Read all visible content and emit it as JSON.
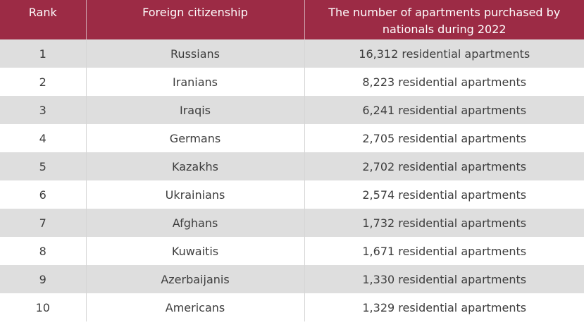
{
  "table": {
    "header": {
      "rank": "Rank",
      "citizenship": "Foreign citizenship",
      "count": "The number of apartments purchased by nationals during 2022"
    },
    "rows": [
      {
        "rank": "1",
        "citizenship": "Russians",
        "count": "16,312 residential apartments"
      },
      {
        "rank": "2",
        "citizenship": "Iranians",
        "count": "8,223 residential apartments"
      },
      {
        "rank": "3",
        "citizenship": "Iraqis",
        "count": "6,241 residential apartments"
      },
      {
        "rank": "4",
        "citizenship": "Germans",
        "count": "2,705 residential apartments"
      },
      {
        "rank": "5",
        "citizenship": "Kazakhs",
        "count": "2,702 residential apartments"
      },
      {
        "rank": "6",
        "citizenship": "Ukrainians",
        "count": "2,574 residential apartments"
      },
      {
        "rank": "7",
        "citizenship": "Afghans",
        "count": "1,732 residential apartments"
      },
      {
        "rank": "8",
        "citizenship": "Kuwaitis",
        "count": "1,671 residential apartments"
      },
      {
        "rank": "9",
        "citizenship": "Azerbaijanis",
        "count": "1,330 residential apartments"
      },
      {
        "rank": "10",
        "citizenship": "Americans",
        "count": "1,329 residential apartments"
      }
    ]
  },
  "colors": {
    "header_bg": "#9c2b45",
    "header_text": "#ffffff",
    "row_alt_bg": "#dedede",
    "row_bg": "#ffffff",
    "cell_text": "#3d3d3d"
  }
}
